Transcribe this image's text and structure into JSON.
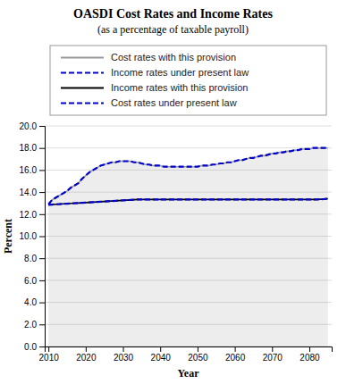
{
  "chart_data": {
    "type": "line",
    "title": "OASDI Cost Rates and Income Rates",
    "subtitle": "(as a percentage of taxable payroll)",
    "xlabel": "Year",
    "ylabel": "Percent",
    "x": [
      2010,
      2011,
      2012,
      2013,
      2014,
      2015,
      2016,
      2017,
      2018,
      2019,
      2020,
      2021,
      2022,
      2023,
      2024,
      2025,
      2026,
      2027,
      2028,
      2029,
      2030,
      2031,
      2032,
      2033,
      2034,
      2035,
      2036,
      2037,
      2038,
      2039,
      2040,
      2041,
      2042,
      2043,
      2044,
      2045,
      2046,
      2047,
      2048,
      2049,
      2050,
      2051,
      2052,
      2053,
      2054,
      2055,
      2056,
      2057,
      2058,
      2059,
      2060,
      2061,
      2062,
      2063,
      2064,
      2065,
      2066,
      2067,
      2068,
      2069,
      2070,
      2071,
      2072,
      2073,
      2074,
      2075,
      2076,
      2077,
      2078,
      2079,
      2080,
      2081,
      2082,
      2083,
      2084,
      2085
    ],
    "xlim": [
      2009,
      2086
    ],
    "xticks": [
      2010,
      2020,
      2030,
      2040,
      2050,
      2060,
      2070,
      2080
    ],
    "ylim": [
      0.0,
      20.0
    ],
    "yticks": [
      {
        "value": 0.0,
        "label": "0.0"
      },
      {
        "value": 2.0,
        "label": "2.0"
      },
      {
        "value": 4.0,
        "label": "4.0"
      },
      {
        "value": 6.0,
        "label": "6.0"
      },
      {
        "value": 8.0,
        "label": "8.0"
      },
      {
        "value": 10.0,
        "label": "10.0"
      },
      {
        "value": 12.0,
        "label": "12.0"
      },
      {
        "value": 14.0,
        "label": "14.0"
      },
      {
        "value": 16.0,
        "label": "16.0"
      },
      {
        "value": 18.0,
        "label": "18.0"
      },
      {
        "value": 20.0,
        "label": "20.0"
      }
    ],
    "grid": true,
    "legend": "top",
    "series": [
      {
        "name": "Cost rates with this provision",
        "type": "area",
        "color": "#999999",
        "line_style": "solid",
        "values": [
          12.9,
          13.3,
          13.5,
          13.7,
          13.9,
          14.1,
          14.4,
          14.6,
          14.8,
          15.2,
          15.5,
          15.8,
          16.0,
          16.2,
          16.4,
          16.5,
          16.6,
          16.7,
          16.7,
          16.8,
          16.8,
          16.8,
          16.8,
          16.7,
          16.7,
          16.6,
          16.5,
          16.5,
          16.4,
          16.4,
          16.4,
          16.3,
          16.3,
          16.3,
          16.3,
          16.3,
          16.3,
          16.3,
          16.3,
          16.3,
          16.3,
          16.4,
          16.4,
          16.4,
          16.5,
          16.5,
          16.6,
          16.6,
          16.7,
          16.7,
          16.8,
          16.9,
          16.9,
          17.0,
          17.1,
          17.1,
          17.2,
          17.3,
          17.3,
          17.4,
          17.5,
          17.5,
          17.6,
          17.6,
          17.7,
          17.7,
          17.8,
          17.8,
          17.9,
          17.9,
          17.9,
          18.0,
          18.0,
          18.0,
          18.0,
          18.0
        ]
      },
      {
        "name": "Income rates under present law",
        "type": "line",
        "color": "#0000cc",
        "line_style": "dashed",
        "values": [
          12.85,
          12.87,
          12.89,
          12.91,
          12.93,
          12.95,
          12.97,
          12.99,
          13.01,
          13.03,
          13.05,
          13.07,
          13.09,
          13.11,
          13.13,
          13.15,
          13.17,
          13.19,
          13.21,
          13.23,
          13.25,
          13.27,
          13.29,
          13.31,
          13.33,
          13.33,
          13.33,
          13.33,
          13.33,
          13.33,
          13.33,
          13.33,
          13.33,
          13.33,
          13.33,
          13.33,
          13.33,
          13.33,
          13.33,
          13.33,
          13.33,
          13.33,
          13.33,
          13.33,
          13.33,
          13.33,
          13.33,
          13.33,
          13.33,
          13.33,
          13.33,
          13.33,
          13.33,
          13.33,
          13.33,
          13.33,
          13.33,
          13.33,
          13.33,
          13.33,
          13.33,
          13.33,
          13.33,
          13.33,
          13.33,
          13.33,
          13.33,
          13.33,
          13.33,
          13.33,
          13.33,
          13.33,
          13.33,
          13.35,
          13.37,
          13.4
        ]
      },
      {
        "name": "Income rates with this provision",
        "type": "line",
        "color": "#000000",
        "line_style": "solid",
        "values": [
          12.85,
          12.87,
          12.89,
          12.91,
          12.93,
          12.95,
          12.97,
          12.99,
          13.01,
          13.03,
          13.05,
          13.07,
          13.09,
          13.11,
          13.13,
          13.15,
          13.17,
          13.19,
          13.21,
          13.23,
          13.25,
          13.27,
          13.29,
          13.31,
          13.33,
          13.33,
          13.33,
          13.33,
          13.33,
          13.33,
          13.33,
          13.33,
          13.33,
          13.33,
          13.33,
          13.33,
          13.33,
          13.33,
          13.33,
          13.33,
          13.33,
          13.33,
          13.33,
          13.33,
          13.33,
          13.33,
          13.33,
          13.33,
          13.33,
          13.33,
          13.33,
          13.33,
          13.33,
          13.33,
          13.33,
          13.33,
          13.33,
          13.33,
          13.33,
          13.33,
          13.33,
          13.33,
          13.33,
          13.33,
          13.33,
          13.33,
          13.33,
          13.33,
          13.33,
          13.33,
          13.33,
          13.33,
          13.33,
          13.35,
          13.37,
          13.4
        ]
      },
      {
        "name": "Cost rates under present law",
        "type": "line",
        "color": "#0000cc",
        "line_style": "dashed",
        "values": [
          12.9,
          13.3,
          13.5,
          13.7,
          13.9,
          14.1,
          14.4,
          14.6,
          14.8,
          15.2,
          15.5,
          15.8,
          16.0,
          16.2,
          16.4,
          16.5,
          16.6,
          16.7,
          16.7,
          16.8,
          16.8,
          16.8,
          16.8,
          16.7,
          16.7,
          16.6,
          16.5,
          16.5,
          16.4,
          16.4,
          16.4,
          16.3,
          16.3,
          16.3,
          16.3,
          16.3,
          16.3,
          16.3,
          16.3,
          16.3,
          16.3,
          16.4,
          16.4,
          16.4,
          16.5,
          16.5,
          16.6,
          16.6,
          16.7,
          16.7,
          16.8,
          16.9,
          16.9,
          17.0,
          17.1,
          17.1,
          17.2,
          17.3,
          17.3,
          17.4,
          17.5,
          17.5,
          17.6,
          17.6,
          17.7,
          17.7,
          17.8,
          17.8,
          17.9,
          17.9,
          17.9,
          18.0,
          18.0,
          18.0,
          18.0,
          18.0
        ]
      }
    ]
  }
}
